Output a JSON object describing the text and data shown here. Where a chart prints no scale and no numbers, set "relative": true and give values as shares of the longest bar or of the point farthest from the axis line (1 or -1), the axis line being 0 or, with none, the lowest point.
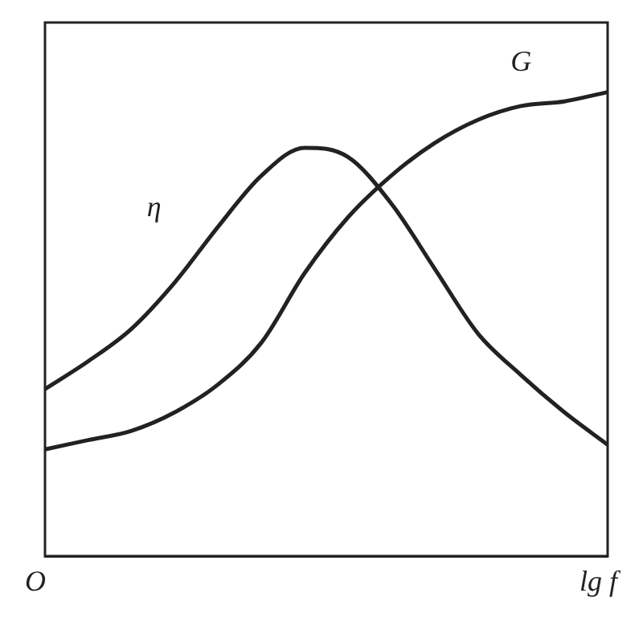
{
  "chart_data": {
    "type": "line",
    "relative": true,
    "xlabel": "lg f",
    "annotations": [
      "O"
    ],
    "legend": false,
    "grid": false,
    "marker": "none",
    "line_style": "solid",
    "categories": [
      null,
      null,
      null,
      null,
      null,
      null,
      null,
      null,
      null,
      null,
      null,
      null,
      null,
      null
    ],
    "series": [
      {
        "name": "η",
        "color": "#222222",
        "values": [
          0.36,
          0.42,
          0.49,
          0.59,
          0.71,
          0.82,
          0.88,
          0.86,
          0.76,
          0.62,
          0.48,
          0.39,
          0.31,
          0.24
        ]
      },
      {
        "name": "G",
        "color": "#222222",
        "values": [
          0.23,
          0.25,
          0.27,
          0.31,
          0.37,
          0.46,
          0.61,
          0.73,
          0.82,
          0.89,
          0.94,
          0.97,
          0.98,
          1
        ]
      }
    ]
  }
}
